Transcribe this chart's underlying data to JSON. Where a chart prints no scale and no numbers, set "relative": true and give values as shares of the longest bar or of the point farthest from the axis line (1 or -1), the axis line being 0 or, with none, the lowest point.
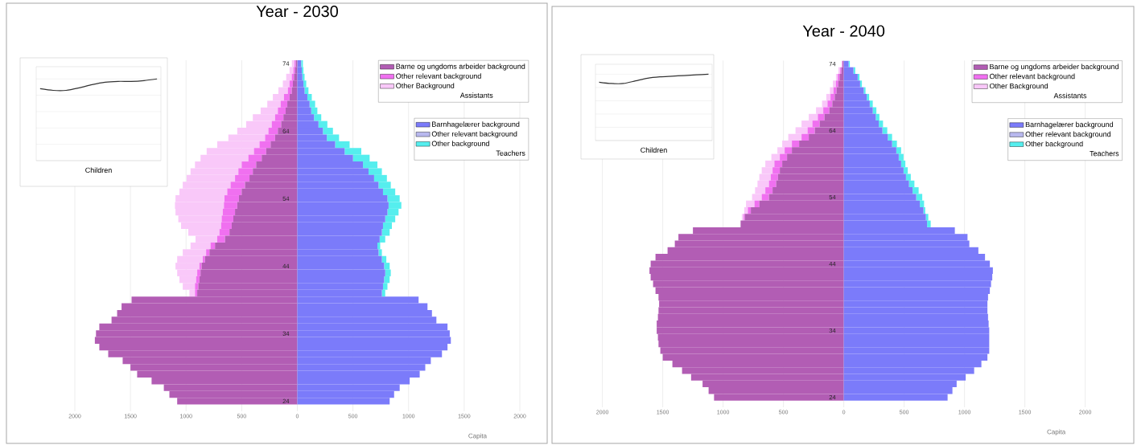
{
  "chart_data": [
    {
      "type": "bar",
      "orientation": "horizontal",
      "stacked": true,
      "title": "Year - 2030",
      "xlabel": "Capita",
      "legend": "top right",
      "grid": "x",
      "annotations": [
        "Assistants",
        "Teachers"
      ],
      "categories": [
        "74",
        null,
        null,
        null,
        null,
        null,
        null,
        null,
        null,
        null,
        "64",
        null,
        null,
        null,
        null,
        null,
        null,
        null,
        null,
        null,
        "54",
        null,
        null,
        null,
        null,
        null,
        null,
        null,
        null,
        null,
        "44",
        null,
        null,
        null,
        null,
        null,
        null,
        null,
        null,
        null,
        "34",
        null,
        null,
        null,
        null,
        null,
        null,
        null,
        null,
        null,
        "24"
      ],
      "xlim": [
        -2000,
        2000
      ],
      "xticks": [
        {
          "value": -2000,
          "label": "2000"
        },
        {
          "value": -1500,
          "label": "1500"
        },
        {
          "value": -1000,
          "label": "1000"
        },
        {
          "value": -500,
          "label": "500"
        },
        0,
        500,
        1000,
        1500,
        2000
      ],
      "series": [
        {
          "name": "Barne og ungdoms arbeider background",
          "color": "#b25db4",
          "values": [
            -15,
            -20,
            -30,
            -40,
            -50,
            -70,
            -90,
            -105,
            -125,
            -145,
            -175,
            -200,
            -240,
            -280,
            -320,
            -370,
            -400,
            -430,
            -470,
            -500,
            -525,
            -540,
            -560,
            -575,
            -590,
            -610,
            -650,
            -740,
            -790,
            -830,
            -860,
            -870,
            -880,
            -890,
            -900,
            -1490,
            -1580,
            -1620,
            -1670,
            -1780,
            -1810,
            -1820,
            -1780,
            -1700,
            -1570,
            -1500,
            -1440,
            -1310,
            -1200,
            -1150,
            -1080
          ]
        },
        {
          "name": "Other relevant background",
          "color": "#f070f0",
          "values": [
            -10,
            -15,
            -20,
            -30,
            -35,
            -50,
            -60,
            -70,
            -75,
            -85,
            -85,
            -90,
            -100,
            -110,
            -120,
            -130,
            -130,
            -130,
            -130,
            -130,
            -130,
            -120,
            -110,
            -105,
            -95,
            -90,
            -70,
            -40,
            -30,
            -20,
            -20,
            -30,
            -30,
            -30,
            -20,
            0,
            0,
            0,
            0,
            0,
            0,
            0,
            0,
            0,
            0,
            0,
            0,
            0,
            0,
            0,
            0
          ]
        },
        {
          "name": "Other Background",
          "color": "#f9c8f9",
          "values": [
            -25,
            -35,
            -50,
            -60,
            -85,
            -100,
            -120,
            -155,
            -200,
            -230,
            -280,
            -330,
            -380,
            -425,
            -430,
            -420,
            -430,
            -435,
            -430,
            -430,
            -440,
            -440,
            -425,
            -390,
            -360,
            -280,
            -195,
            -180,
            -210,
            -230,
            -215,
            -180,
            -150,
            -110,
            -50,
            0,
            0,
            0,
            0,
            0,
            0,
            0,
            0,
            0,
            0,
            0,
            0,
            0,
            0,
            0,
            0
          ]
        },
        {
          "name": "Barnhagelærer background",
          "color": "#7b7bfa",
          "values": [
            35,
            40,
            45,
            55,
            65,
            90,
            110,
            125,
            150,
            190,
            230,
            265,
            340,
            425,
            500,
            590,
            640,
            690,
            730,
            770,
            810,
            820,
            810,
            790,
            770,
            760,
            740,
            720,
            730,
            760,
            780,
            790,
            780,
            770,
            760,
            1090,
            1170,
            1210,
            1250,
            1350,
            1370,
            1380,
            1350,
            1300,
            1200,
            1150,
            1100,
            1010,
            920,
            870,
            830
          ]
        },
        {
          "name": "Other relevant background",
          "color": "#b8b8ee",
          "values": [
            0,
            0,
            0,
            0,
            0,
            0,
            0,
            0,
            0,
            0,
            0,
            0,
            0,
            0,
            0,
            0,
            0,
            0,
            0,
            0,
            0,
            0,
            0,
            0,
            0,
            0,
            0,
            0,
            0,
            0,
            0,
            0,
            0,
            0,
            0,
            0,
            0,
            0,
            0,
            0,
            0,
            0,
            0,
            0,
            0,
            0,
            0,
            0,
            0,
            0,
            0
          ]
        },
        {
          "name": "Other background",
          "color": "#55eeee",
          "values": [
            15,
            15,
            20,
            25,
            35,
            40,
            50,
            55,
            65,
            80,
            90,
            110,
            130,
            150,
            150,
            130,
            120,
            115,
            110,
            110,
            110,
            115,
            100,
            90,
            80,
            70,
            50,
            25,
            30,
            40,
            50,
            50,
            50,
            40,
            30,
            0,
            0,
            0,
            0,
            0,
            0,
            0,
            0,
            0,
            0,
            0,
            0,
            0,
            0,
            0,
            0
          ]
        }
      ]
    },
    {
      "type": "line",
      "relative": true,
      "xlabel": "Children",
      "grid": "y",
      "marker": "none",
      "color": "#333333",
      "categories": [
        null,
        null,
        null,
        null,
        null,
        null,
        null,
        null,
        null,
        null
      ],
      "values": [
        0.88,
        0.86,
        0.86,
        0.89,
        0.93,
        0.96,
        0.97,
        0.97,
        0.98,
        1.0
      ]
    },
    {
      "type": "bar",
      "orientation": "horizontal",
      "stacked": true,
      "title": "Year - 2040",
      "xlabel": "Capita",
      "legend": "top right",
      "grid": "x",
      "annotations": [
        "Assistants",
        "Teachers"
      ],
      "categories": [
        "74",
        null,
        null,
        null,
        null,
        null,
        null,
        null,
        null,
        null,
        "64",
        null,
        null,
        null,
        null,
        null,
        null,
        null,
        null,
        null,
        "54",
        null,
        null,
        null,
        null,
        null,
        null,
        null,
        null,
        null,
        "44",
        null,
        null,
        null,
        null,
        null,
        null,
        null,
        null,
        null,
        "34",
        null,
        null,
        null,
        null,
        null,
        null,
        null,
        null,
        null,
        "24"
      ],
      "xlim": [
        -2000,
        2000
      ],
      "xticks": [
        {
          "value": -2000,
          "label": "2000"
        },
        {
          "value": -1500,
          "label": "1500"
        },
        {
          "value": -1000,
          "label": "1000"
        },
        {
          "value": -500,
          "label": "500"
        },
        0,
        500,
        1000,
        1500,
        2000
      ],
      "series": [
        {
          "name": "Barne og ungdoms arbeider background",
          "color": "#b25db4",
          "values": [
            -10,
            -20,
            -35,
            -45,
            -60,
            -75,
            -95,
            -120,
            -160,
            -200,
            -240,
            -290,
            -370,
            -430,
            -470,
            -510,
            -530,
            -545,
            -560,
            -590,
            -620,
            -700,
            -770,
            -820,
            -855,
            -1250,
            -1370,
            -1400,
            -1460,
            -1560,
            -1600,
            -1610,
            -1600,
            -1580,
            -1560,
            -1535,
            -1530,
            -1535,
            -1540,
            -1550,
            -1550,
            -1540,
            -1535,
            -1520,
            -1500,
            -1420,
            -1340,
            -1265,
            -1170,
            -1120,
            -1075
          ]
        },
        {
          "name": "Other relevant background",
          "color": "#f070f0",
          "values": [
            -5,
            -10,
            -15,
            -20,
            -25,
            -35,
            -40,
            -50,
            -55,
            -60,
            -60,
            -60,
            -60,
            -60,
            -60,
            -65,
            -60,
            -60,
            -60,
            -60,
            -60,
            -40,
            -25,
            -10,
            0,
            0,
            0,
            0,
            0,
            0,
            0,
            0,
            0,
            0,
            0,
            0,
            0,
            0,
            0,
            0,
            0,
            0,
            0,
            0,
            0,
            0,
            0,
            0,
            0,
            0,
            0
          ]
        },
        {
          "name": "Other Background",
          "color": "#f9c8f9",
          "values": [
            0,
            -15,
            -15,
            -25,
            -30,
            -35,
            -45,
            -60,
            -75,
            -90,
            -100,
            -110,
            -80,
            -60,
            -70,
            -75,
            -90,
            -95,
            -95,
            -85,
            -80,
            -70,
            -30,
            -15,
            0,
            0,
            0,
            0,
            0,
            0,
            0,
            0,
            0,
            0,
            0,
            0,
            0,
            0,
            0,
            0,
            0,
            0,
            0,
            0,
            0,
            0,
            0,
            0,
            0,
            0,
            0
          ]
        },
        {
          "name": "Barnhagelærer background",
          "color": "#7b7bfa",
          "values": [
            40,
            80,
            115,
            135,
            165,
            190,
            215,
            240,
            265,
            290,
            320,
            365,
            400,
            435,
            455,
            475,
            495,
            515,
            540,
            570,
            600,
            630,
            660,
            680,
            690,
            920,
            1025,
            1040,
            1115,
            1170,
            1210,
            1235,
            1230,
            1220,
            1210,
            1195,
            1190,
            1190,
            1195,
            1200,
            1205,
            1205,
            1205,
            1205,
            1190,
            1140,
            1080,
            1010,
            935,
            900,
            860
          ]
        },
        {
          "name": "Other relevant background",
          "color": "#b8b8ee",
          "values": [
            0,
            0,
            0,
            0,
            0,
            0,
            0,
            0,
            0,
            0,
            0,
            0,
            0,
            0,
            0,
            0,
            0,
            0,
            0,
            0,
            0,
            0,
            0,
            0,
            0,
            0,
            0,
            0,
            0,
            0,
            0,
            0,
            0,
            0,
            0,
            0,
            0,
            0,
            0,
            0,
            0,
            0,
            0,
            0,
            0,
            0,
            0,
            0,
            0,
            0,
            0
          ]
        },
        {
          "name": "Other background",
          "color": "#55eeee",
          "values": [
            10,
            15,
            15,
            15,
            15,
            20,
            25,
            30,
            30,
            35,
            40,
            35,
            40,
            40,
            40,
            35,
            35,
            40,
            45,
            50,
            50,
            35,
            15,
            20,
            30,
            0,
            0,
            0,
            0,
            0,
            0,
            0,
            0,
            0,
            0,
            0,
            0,
            0,
            0,
            0,
            0,
            0,
            0,
            0,
            0,
            0,
            0,
            0,
            0,
            0,
            0
          ]
        }
      ]
    },
    {
      "type": "line",
      "relative": true,
      "xlabel": "Children",
      "grid": "y",
      "marker": "none",
      "color": "#333333",
      "categories": [
        null,
        null,
        null,
        null,
        null,
        null,
        null,
        null,
        null,
        null
      ],
      "values": [
        0.88,
        0.86,
        0.86,
        0.9,
        0.94,
        0.96,
        0.97,
        0.98,
        0.99,
        1.0
      ]
    }
  ]
}
